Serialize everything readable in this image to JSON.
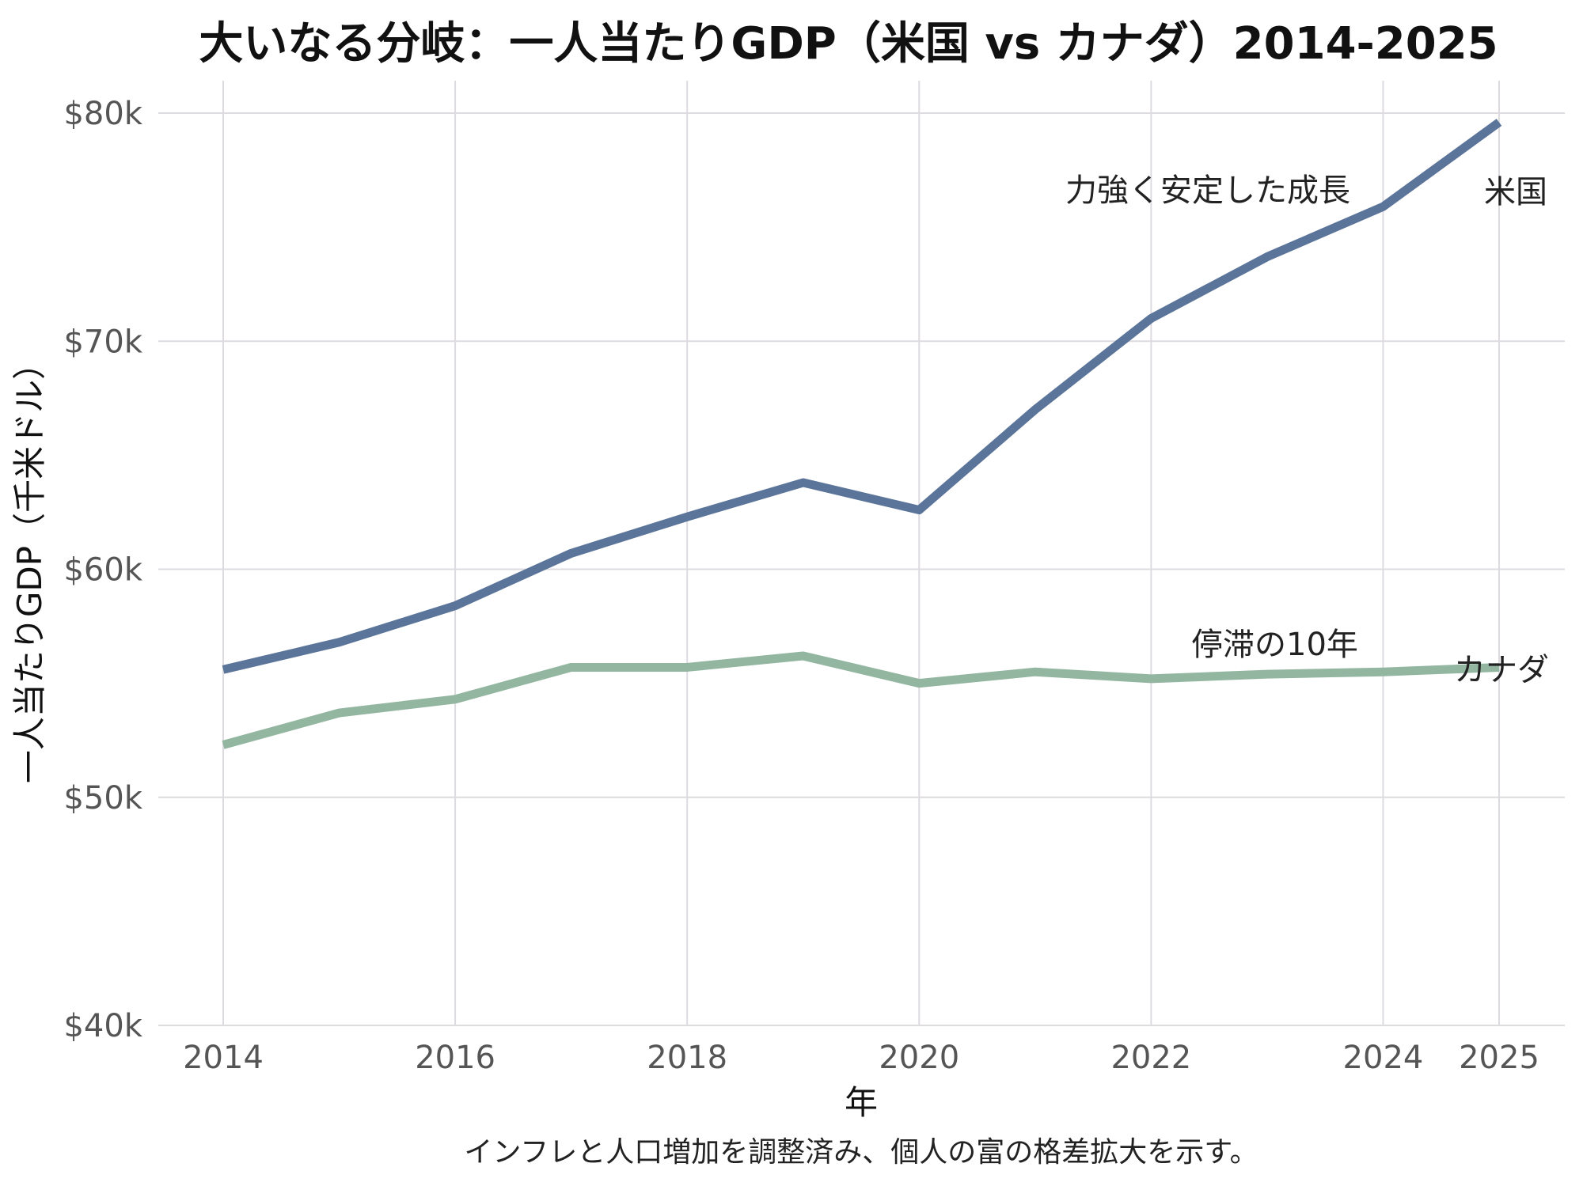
{
  "chart_data": {
    "type": "line",
    "title": "大いなる分岐：一人当たりGDP（米国 vs カナダ）2014-2025",
    "xlabel": "年",
    "ylabel": "一人当たりGDP（千米ドル）",
    "caption": "インフレと人口増加を調整済み、個人の富の格差拡大を示す。",
    "x": [
      2014,
      2015,
      2016,
      2017,
      2018,
      2019,
      2020,
      2021,
      2022,
      2023,
      2024,
      2025
    ],
    "x_ticks": [
      2014,
      2016,
      2018,
      2020,
      2022,
      2024,
      2025
    ],
    "y_ticks": [
      40,
      50,
      60,
      70,
      80
    ],
    "y_tick_labels": [
      "$40k",
      "$50k",
      "$60k",
      "$70k",
      "$80k"
    ],
    "xlim": [
      2014,
      2025
    ],
    "ylim": [
      40,
      80
    ],
    "grid": true,
    "series": [
      {
        "name": "米国",
        "color": "#5b7499",
        "values": [
          55.6,
          56.8,
          58.4,
          60.7,
          62.3,
          63.8,
          62.6,
          67.0,
          71.0,
          73.7,
          75.9,
          79.6
        ]
      },
      {
        "name": "カナダ",
        "color": "#93b6a0",
        "values": [
          52.3,
          53.7,
          54.3,
          55.7,
          55.7,
          56.2,
          55.0,
          55.5,
          55.2,
          55.4,
          55.5,
          55.7
        ]
      }
    ],
    "annotations": [
      {
        "text": "力強く安定した成長",
        "series": "米国"
      },
      {
        "text": "停滞の10年",
        "series": "カナダ"
      }
    ]
  }
}
